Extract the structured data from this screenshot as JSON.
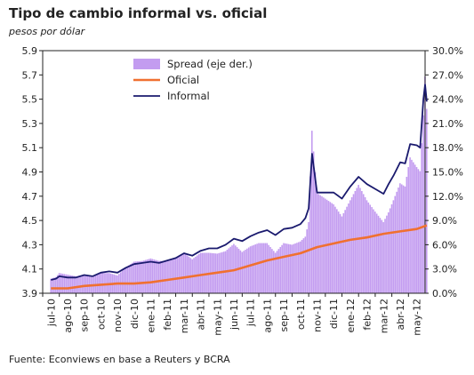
{
  "header": {
    "title": "Tipo de cambio informal  vs. oficial",
    "subtitle": "pesos por dólar"
  },
  "footer": {
    "source": "Fuente: Econviews en base a Reuters y BCRA"
  },
  "colors": {
    "spread": "#c39cf0",
    "oficial": "#f07030",
    "informal": "#1a1a6e"
  },
  "chart_data": {
    "type": "line",
    "title": "Tipo de cambio informal  vs. oficial",
    "subtitle": "pesos por dólar",
    "xlabel": "",
    "ylabel": "",
    "y_left": {
      "lim": [
        3.9,
        5.9
      ],
      "ticks": [
        "3.9",
        "4.1",
        "4.3",
        "4.5",
        "4.7",
        "4.9",
        "5.1",
        "5.3",
        "5.5",
        "5.7",
        "5.9"
      ]
    },
    "y_right": {
      "lim": [
        0,
        30
      ],
      "ticks": [
        "0.0%",
        "3.0%",
        "6.0%",
        "9.0%",
        "12.0%",
        "15.0%",
        "18.0%",
        "21.0%",
        "24.0%",
        "27.0%",
        "30.0%"
      ]
    },
    "categories": [
      "jul-10",
      "ago-10",
      "sep-10",
      "oct-10",
      "nov-10",
      "dic-10",
      "ene-11",
      "feb-11",
      "mar-11",
      "abr-11",
      "may-11",
      "jun-11",
      "jul-11",
      "ago-11",
      "sep-11",
      "oct-11",
      "nov-11",
      "dic-11",
      "ene-12",
      "feb-12",
      "mar-12",
      "abr-12",
      "may-12"
    ],
    "legend": {
      "position": "top-left",
      "entries": [
        "Spread (eje der.)",
        "Oficial",
        "Informal"
      ]
    },
    "grid": false,
    "series": [
      {
        "name": "Informal",
        "axis": "left",
        "type": "line",
        "x": [
          0,
          0.3,
          0.5,
          1,
          1.5,
          2,
          2.5,
          3,
          3.5,
          4,
          4.5,
          5,
          5.5,
          6,
          6.5,
          7,
          7.5,
          8,
          8.5,
          9,
          9.5,
          10,
          10.5,
          11,
          11.5,
          12,
          12.5,
          13,
          13.5,
          14,
          14.5,
          15,
          15.3,
          15.5,
          15.7,
          16,
          16.5,
          17,
          17.5,
          18,
          18.5,
          19,
          19.5,
          20,
          20.3,
          20.6,
          21,
          21.3,
          21.6,
          22,
          22.2,
          22.4,
          22.5,
          22.6
        ],
        "values": [
          4.01,
          4.02,
          4.04,
          4.03,
          4.03,
          4.05,
          4.04,
          4.07,
          4.08,
          4.07,
          4.11,
          4.14,
          4.15,
          4.16,
          4.15,
          4.17,
          4.19,
          4.23,
          4.21,
          4.25,
          4.27,
          4.27,
          4.3,
          4.35,
          4.33,
          4.37,
          4.4,
          4.42,
          4.38,
          4.43,
          4.44,
          4.47,
          4.52,
          4.6,
          5.05,
          4.73,
          4.73,
          4.73,
          4.68,
          4.78,
          4.86,
          4.8,
          4.76,
          4.72,
          4.8,
          4.87,
          4.98,
          4.97,
          5.13,
          5.12,
          5.1,
          5.5,
          5.62,
          5.48
        ]
      },
      {
        "name": "Oficial",
        "axis": "left",
        "type": "line",
        "x": [
          0,
          1,
          2,
          3,
          4,
          5,
          6,
          7,
          8,
          9,
          10,
          11,
          12,
          13,
          14,
          15,
          16,
          17,
          18,
          19,
          20,
          21,
          22,
          22.6
        ],
        "values": [
          3.94,
          3.94,
          3.96,
          3.97,
          3.98,
          3.98,
          3.99,
          4.01,
          4.03,
          4.05,
          4.07,
          4.09,
          4.13,
          4.17,
          4.2,
          4.23,
          4.28,
          4.31,
          4.34,
          4.36,
          4.39,
          4.41,
          4.43,
          4.46
        ]
      },
      {
        "name": "Spread (eje der.)",
        "axis": "right",
        "type": "bar",
        "x": [
          0,
          0.3,
          0.5,
          1,
          1.5,
          2,
          2.5,
          3,
          3.5,
          4,
          4.5,
          5,
          5.5,
          6,
          6.5,
          7,
          7.5,
          8,
          8.5,
          9,
          9.5,
          10,
          10.5,
          11,
          11.5,
          12,
          12.5,
          13,
          13.5,
          14,
          14.5,
          15,
          15.3,
          15.5,
          15.7,
          16,
          16.5,
          17,
          17.5,
          18,
          18.5,
          19,
          19.5,
          20,
          20.3,
          20.6,
          21,
          21.3,
          21.6,
          22,
          22.2,
          22.4,
          22.5,
          22.6
        ],
        "values": [
          1.8,
          2.0,
          2.5,
          2.3,
          2.1,
          2.3,
          2.0,
          2.5,
          2.5,
          2.2,
          3.2,
          3.9,
          4.0,
          4.3,
          4.0,
          4.0,
          4.4,
          5.0,
          4.2,
          5.0,
          5.0,
          4.9,
          5.2,
          6.1,
          5.1,
          5.8,
          6.2,
          6.2,
          5.0,
          6.2,
          6.0,
          6.4,
          7.0,
          8.8,
          20.1,
          12.4,
          11.7,
          11.0,
          9.5,
          11.5,
          13.4,
          11.5,
          10.1,
          8.8,
          10.0,
          11.5,
          13.6,
          13.2,
          16.8,
          15.6,
          15.1,
          22.0,
          26.8,
          22.8
        ]
      }
    ]
  }
}
